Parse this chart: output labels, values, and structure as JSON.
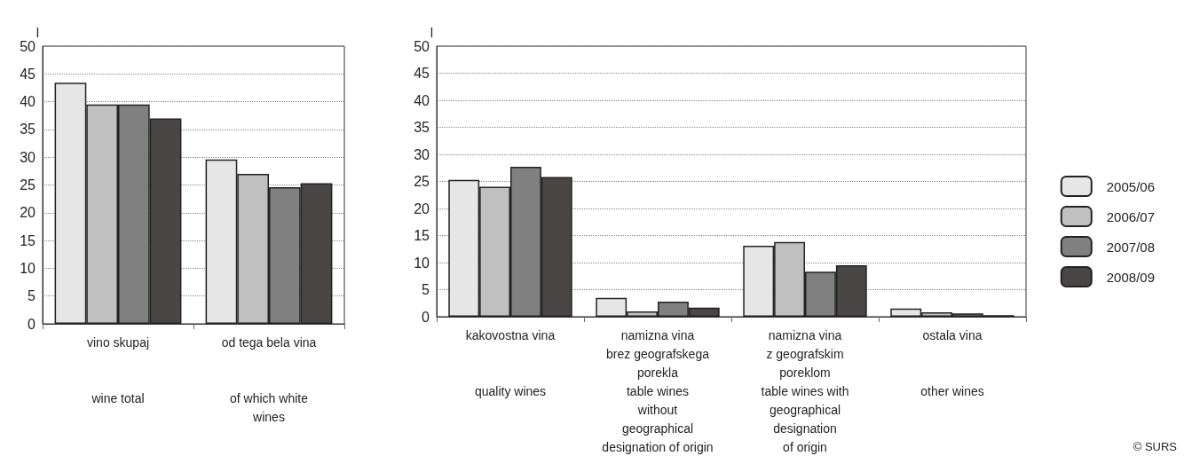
{
  "chart_data": [
    {
      "type": "bar",
      "ylabel": "l",
      "categories": [
        "vino skupaj\n\n\nwine total",
        "od tega bela vina\n\n\nof which white\nwines"
      ],
      "series": [
        {
          "color": "#e6e6e6",
          "values": [
            43.4,
            29.6
          ]
        },
        {
          "color": "#c0c0c0",
          "values": [
            39.5,
            27.0
          ]
        },
        {
          "color": "#808080",
          "values": [
            39.5,
            24.6
          ]
        },
        {
          "color": "#4a4646",
          "values": [
            37.0,
            25.3
          ]
        }
      ],
      "ylim": [
        0,
        50
      ],
      "yticks": [
        0,
        5,
        10,
        15,
        20,
        25,
        30,
        35,
        40,
        45,
        50
      ],
      "grid": "y",
      "legend": false
    },
    {
      "type": "bar",
      "ylabel": "l",
      "categories": [
        "kakovostna vina\n\n\nquality wines",
        "namizna vina\nbrez geografskega\nporekla\ntable wines\nwithout\ngeographical\ndesignation of origin",
        "namizna vina\nz geografskim\nporeklom\ntable wines with\ngeographical\ndesignation\nof origin",
        "ostala vina\n\n\nother wines"
      ],
      "series": [
        {
          "name": "2005/06",
          "color": "#e6e6e6",
          "values": [
            25.3,
            3.5,
            13.1,
            1.5
          ]
        },
        {
          "name": "2006/07",
          "color": "#c0c0c0",
          "values": [
            24.0,
            1.0,
            13.8,
            0.8
          ]
        },
        {
          "name": "2007/08",
          "color": "#808080",
          "values": [
            27.7,
            2.8,
            8.3,
            0.6
          ]
        },
        {
          "name": "2008/09",
          "color": "#4a4646",
          "values": [
            25.8,
            1.7,
            9.5,
            0.3
          ]
        }
      ],
      "ylim": [
        0,
        50
      ],
      "yticks": [
        0,
        5,
        10,
        15,
        20,
        25,
        30,
        35,
        40,
        45,
        50
      ],
      "grid": "y",
      "legend": "right",
      "annotations": [
        "© SURS"
      ]
    }
  ]
}
